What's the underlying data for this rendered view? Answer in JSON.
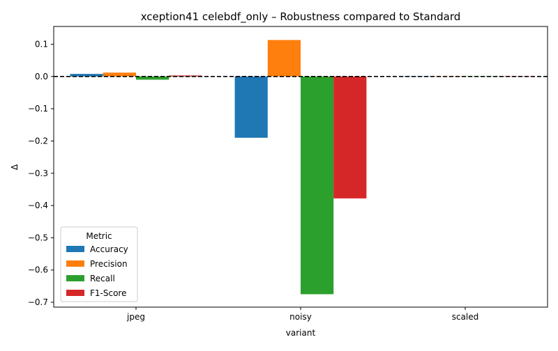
{
  "chart_data": {
    "type": "bar",
    "title": "xception41 celebdf_only – Robustness compared to Standard",
    "xlabel": "variant",
    "ylabel": "Δ",
    "categories": [
      "jpeg",
      "noisy",
      "scaled"
    ],
    "ylim": [
      -0.715,
      0.155
    ],
    "yticks": [
      0.1,
      0.0,
      -0.1,
      -0.2,
      -0.3,
      -0.4,
      -0.5,
      -0.6,
      -0.7
    ],
    "ytick_labels": [
      "0.1",
      "0.0",
      "−0.1",
      "−0.2",
      "−0.3",
      "−0.4",
      "−0.5",
      "−0.6",
      "−0.7"
    ],
    "reference_line": {
      "y": 0,
      "style": "dashed",
      "color": "#000000"
    },
    "grid": false,
    "legend": {
      "title": "Metric",
      "position": "lower-left"
    },
    "series": [
      {
        "name": "Accuracy",
        "color": "#1f77b4",
        "values": [
          0.008,
          -0.19,
          0.001
        ]
      },
      {
        "name": "Precision",
        "color": "#ff7f0e",
        "values": [
          0.012,
          0.113,
          0.001
        ]
      },
      {
        "name": "Recall",
        "color": "#2ca02c",
        "values": [
          -0.01,
          -0.675,
          0.001
        ]
      },
      {
        "name": "F1-Score",
        "color": "#d62728",
        "values": [
          0.003,
          -0.378,
          0.001
        ]
      }
    ]
  }
}
